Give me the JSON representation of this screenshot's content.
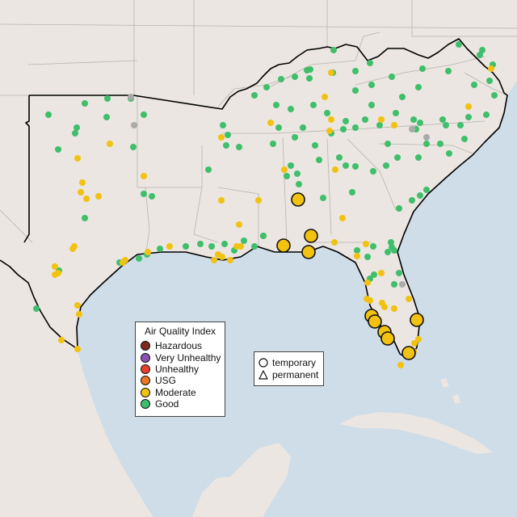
{
  "map": {
    "colors": {
      "water": "#cfdde8",
      "land": "#ebe6e1",
      "region": "#ece7e3",
      "border": "#b9b3ad",
      "region_outline": "#000000"
    },
    "aqi_colors": {
      "Hazardous": "#7e2a1e",
      "Very Unhealthy": "#8c52b3",
      "Unhealthy": "#e8412d",
      "USG": "#e8772a",
      "Moderate": "#f2c210",
      "Good": "#3fbf6b",
      "No data": "#aaaaaa"
    }
  },
  "legend": {
    "title": "Air Quality Index",
    "items": [
      {
        "label": "Hazardous",
        "color": "#7e2a1e"
      },
      {
        "label": "Very Unhealthy",
        "color": "#8c52b3"
      },
      {
        "label": "Unhealthy",
        "color": "#e8412d"
      },
      {
        "label": "USG",
        "color": "#e8772a"
      },
      {
        "label": "Moderate",
        "color": "#f2c210"
      },
      {
        "label": "Good",
        "color": "#3fbf6b"
      }
    ]
  },
  "shape_legend": {
    "items": [
      {
        "label": "temporary",
        "shape": "circle"
      },
      {
        "label": "permanent",
        "shape": "triangle"
      }
    ]
  }
}
